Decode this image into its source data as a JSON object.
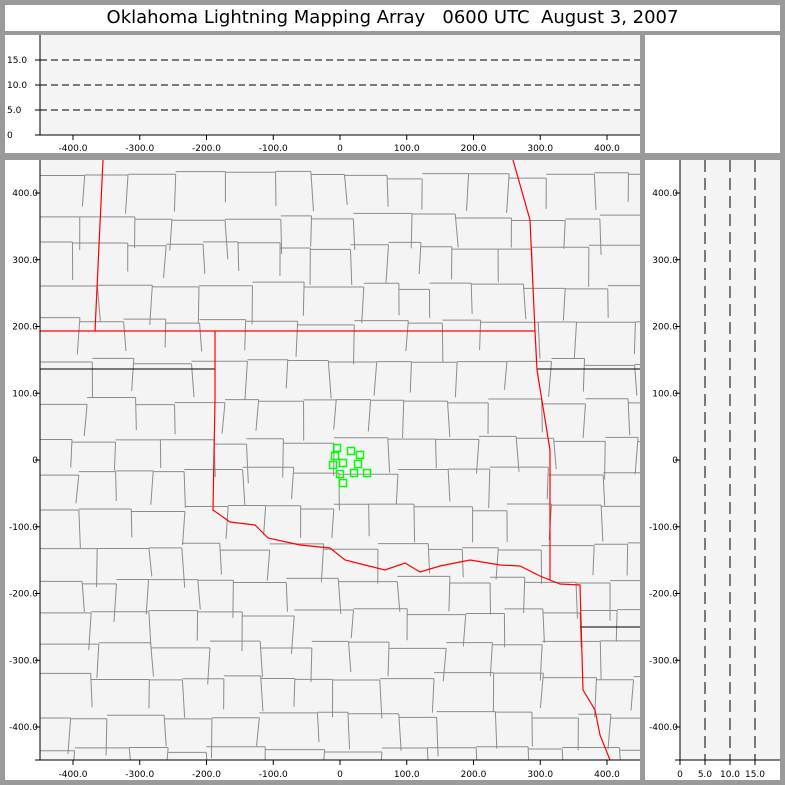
{
  "title": "Oklahoma Lightning Mapping Array   0600 UTC  August 3, 2007",
  "colors": {
    "background": "#9a9a9a",
    "plot": "#f4f4f4",
    "state_border": "#ff0000",
    "county": "#8c8c8c",
    "source": "#00ff00"
  },
  "chart_data": [
    {
      "panel": "altitude-vs-east-west",
      "type": "scatter",
      "x_ticks": [
        "-400.0",
        "-300.0",
        "-200.0",
        "-100.0",
        "0",
        "100.0",
        "200.0",
        "300.0",
        "400.0"
      ],
      "y_ticks": [
        "0",
        "5.0",
        "10.0",
        "15.0"
      ],
      "xlim": [
        -450,
        450
      ],
      "ylim": [
        0,
        20
      ],
      "reference_lines_y": [
        5,
        10,
        15
      ],
      "points": []
    },
    {
      "panel": "plan-view",
      "type": "scatter",
      "x_ticks": [
        "-400.0",
        "-300.0",
        "-200.0",
        "-100.0",
        "0",
        "100.0",
        "200.0",
        "300.0",
        "400.0"
      ],
      "y_ticks": [
        "400.0",
        "300.0",
        "200.0",
        "100.0",
        "0",
        "-100.0",
        "-200.0",
        "-300.0",
        "-400.0"
      ],
      "xlim": [
        -450,
        450
      ],
      "ylim": [
        -450,
        450
      ],
      "marker": "square",
      "points": [
        [
          -4.5,
          18
        ],
        [
          16.5,
          13.5
        ],
        [
          30,
          7.5
        ],
        [
          -7.5,
          6
        ],
        [
          -10.5,
          -7.5
        ],
        [
          4.5,
          -4.5
        ],
        [
          27,
          -6
        ],
        [
          0,
          -21
        ],
        [
          21,
          -19.5
        ],
        [
          40.5,
          -19.5
        ],
        [
          4.5,
          -34.5
        ]
      ]
    },
    {
      "panel": "north-south-vs-altitude",
      "type": "scatter",
      "x_ticks": [
        "0",
        "5.0",
        "10.0",
        "15.0"
      ],
      "y_ticks": [
        "400.0",
        "300.0",
        "200.0",
        "100.0",
        "0",
        "-100.0",
        "-200.0",
        "-300.0",
        "-400.0"
      ],
      "xlim": [
        0,
        20
      ],
      "ylim": [
        -450,
        450
      ],
      "reference_lines_x": [
        5,
        10,
        15
      ],
      "points": []
    }
  ]
}
